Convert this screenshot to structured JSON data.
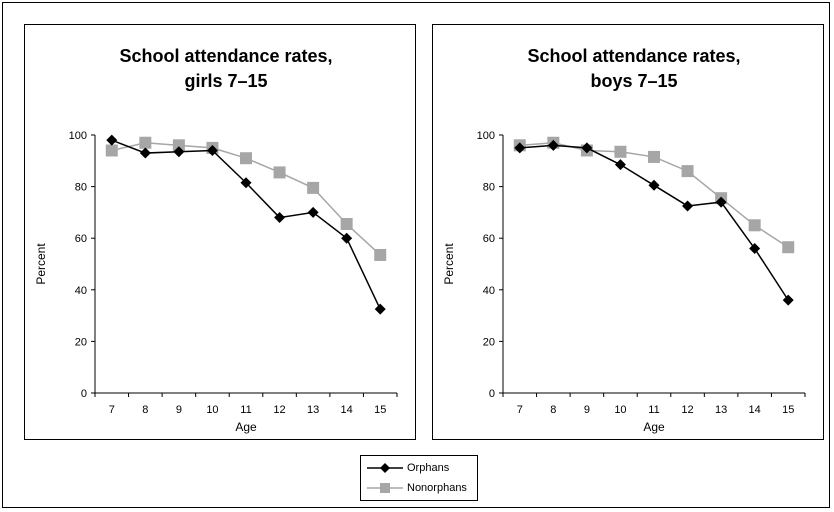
{
  "chart_data": [
    {
      "type": "line",
      "title": [
        "School attendance rates,",
        "girls 7–15"
      ],
      "xlabel": "Age",
      "ylabel": "Percent",
      "categories": [
        7,
        8,
        9,
        10,
        11,
        12,
        13,
        14,
        15
      ],
      "ylim": [
        0,
        100
      ],
      "yticks": [
        0,
        20,
        40,
        60,
        80,
        100
      ],
      "series": [
        {
          "name": "Orphans",
          "marker": "diamond",
          "color": "#000000",
          "values": [
            98,
            93,
            93.5,
            94,
            81.5,
            68,
            70,
            60,
            32.5
          ]
        },
        {
          "name": "Nonorphans",
          "marker": "square",
          "color": "#a6a6a6",
          "values": [
            94,
            97,
            96,
            95,
            91,
            85.5,
            79.5,
            65.5,
            53.5
          ]
        }
      ]
    },
    {
      "type": "line",
      "title": [
        "School attendance rates,",
        "boys 7–15"
      ],
      "xlabel": "Age",
      "ylabel": "Percent",
      "categories": [
        7,
        8,
        9,
        10,
        11,
        12,
        13,
        14,
        15
      ],
      "ylim": [
        0,
        100
      ],
      "yticks": [
        0,
        20,
        40,
        60,
        80,
        100
      ],
      "series": [
        {
          "name": "Orphans",
          "marker": "diamond",
          "color": "#000000",
          "values": [
            95,
            96,
            95,
            88.5,
            80.5,
            72.5,
            74,
            56,
            36
          ]
        },
        {
          "name": "Nonorphans",
          "marker": "square",
          "color": "#a6a6a6",
          "values": [
            96,
            97,
            94,
            93.5,
            91.5,
            86,
            75.5,
            65,
            56.5
          ]
        }
      ]
    }
  ],
  "legend": {
    "items": [
      {
        "label": "Orphans",
        "marker": "diamond",
        "color": "#000000"
      },
      {
        "label": "Nonorphans",
        "marker": "square",
        "color": "#a6a6a6"
      }
    ]
  }
}
